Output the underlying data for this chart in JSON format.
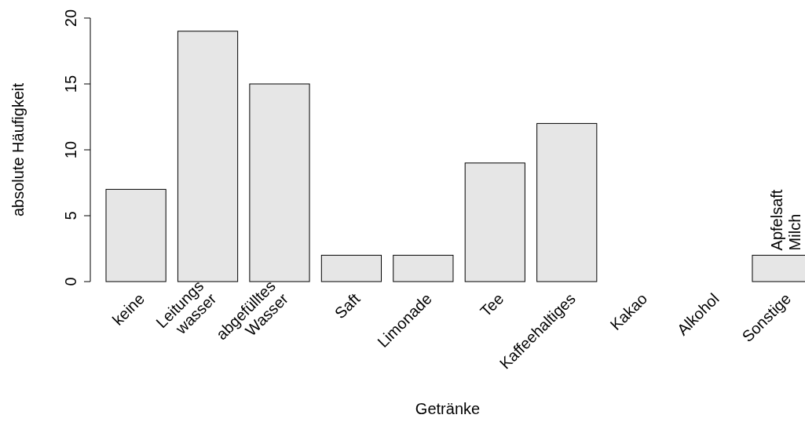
{
  "chart_data": {
    "type": "bar",
    "xlabel": "Getränke",
    "ylabel": "absolute Häufigkeit",
    "categories": [
      "keine",
      "Leitungs\nwasser",
      "abgefülltes\nWasser",
      "Saft",
      "Limonade",
      "Tee",
      "Kaffeehaltiges",
      "Kakao",
      "Alkohol",
      "Sonstige"
    ],
    "values": [
      7,
      19,
      15,
      2,
      2,
      9,
      12,
      0,
      0,
      2
    ],
    "color": "#e6e6e6",
    "ylim": [
      0,
      20
    ],
    "yticks": [
      0,
      5,
      10,
      15,
      20
    ],
    "annotations": [
      {
        "text": "Apfelsaft\nMilch",
        "x": "Sonstige",
        "y": 2
      }
    ]
  }
}
